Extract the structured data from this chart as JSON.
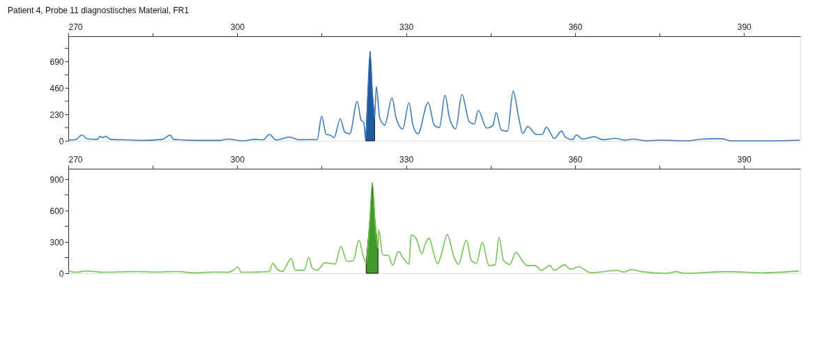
{
  "chart_data": [
    {
      "type": "line",
      "title": "Patient 4, Probe 11 diagnostisches Material, FR1",
      "xlim": [
        270,
        400
      ],
      "ylim": [
        0,
        910
      ],
      "grid": false,
      "xticks": [
        270,
        {
          "value": 285,
          "label": null
        },
        300,
        {
          "value": 315,
          "label": null
        },
        330,
        {
          "value": 345,
          "label": null
        },
        360,
        {
          "value": 375,
          "label": null
        },
        390
      ],
      "yticks": [
        0,
        {
          "value": 115,
          "label": null
        },
        230,
        {
          "value": 345,
          "label": null
        },
        460,
        {
          "value": 575,
          "label": null
        },
        690,
        {
          "value": 805,
          "label": null
        }
      ],
      "series": [
        {
          "type": "area",
          "color": "#1f5aa0",
          "x": [
            322.8,
            323.2,
            323.6,
            324.0,
            324.4
          ],
          "values": [
            7,
            420,
            777,
            420,
            202
          ]
        },
        {
          "color": "#3a7abf",
          "x": [
            270,
            271.3,
            272.4,
            273.4,
            275.2,
            275.6,
            276.1,
            276.6,
            277.5,
            279.8,
            283.5,
            286.7,
            288.1,
            288.7,
            292.6,
            296.8,
            298.4,
            300.9,
            303.2,
            304.6,
            305.7,
            306.9,
            308.3,
            309.2,
            311.0,
            312.4,
            314.2,
            315.0,
            315.8,
            316.5,
            317.2,
            318.3,
            319.1,
            320.0,
            321.3,
            322.0,
            322.5,
            322.8,
            323.2,
            323.6,
            324.0,
            324.4,
            324.7,
            325.3,
            326.2,
            327.5,
            328.2,
            329.4,
            330.5,
            331.2,
            332.1,
            333.9,
            335.0,
            335.9,
            336.9,
            337.7,
            338.8,
            339.9,
            341.2,
            342.1,
            342.8,
            344.3,
            345.4,
            346.0,
            346.9,
            348.0,
            349.0,
            350.0,
            350.7,
            351.6,
            353.1,
            354.2,
            354.9,
            356.3,
            357.6,
            358.3,
            359.6,
            360.2,
            361.4,
            363.4,
            364.9,
            367.1,
            368.9,
            370.2,
            372.8,
            375.0,
            379.9,
            382.5,
            386.0,
            387.8,
            394.0,
            399.9
          ],
          "values": [
            7,
            11,
            50,
            17,
            13,
            39,
            28,
            39,
            13,
            9,
            4,
            13,
            50,
            13,
            4,
            4,
            15,
            0,
            13,
            9,
            56,
            7,
            22,
            33,
            9,
            11,
            11,
            213,
            56,
            50,
            28,
            191,
            76,
            61,
            343,
            180,
            158,
            7,
            420,
            777,
            420,
            202,
            473,
            202,
            137,
            375,
            202,
            104,
            332,
            137,
            61,
            334,
            136,
            115,
            397,
            199,
            105,
            403,
            167,
            146,
            265,
            111,
            136,
            245,
            94,
            84,
            433,
            199,
            63,
            125,
            56,
            56,
            119,
            21,
            84,
            31,
            10,
            52,
            15,
            36,
            10,
            21,
            6,
            15,
            0,
            6,
            0,
            15,
            19,
            0,
            0,
            6
          ]
        }
      ]
    },
    {
      "type": "line",
      "xlim": [
        270,
        400
      ],
      "ylim": [
        0,
        1000
      ],
      "grid": false,
      "xticks": [
        270,
        {
          "value": 285,
          "label": null
        },
        300,
        {
          "value": 315,
          "label": null
        },
        330,
        {
          "value": 345,
          "label": null
        },
        360,
        {
          "value": 375,
          "label": null
        },
        390
      ],
      "yticks": [
        0,
        {
          "value": 150,
          "label": null
        },
        300,
        {
          "value": 450,
          "label": null
        },
        600,
        {
          "value": 750,
          "label": null
        },
        900
      ],
      "series": [
        {
          "type": "area",
          "color": "#3f9a2a",
          "x": [
            322.9,
            323.5,
            324.0,
            324.5,
            325.0
          ],
          "values": [
            101,
            480,
            864,
            480,
            240
          ]
        },
        {
          "color": "#72c452",
          "x": [
            270,
            271.4,
            273.2,
            276.4,
            281.9,
            285.6,
            289.2,
            292.4,
            295.7,
            298.4,
            299.3,
            300.1,
            300.7,
            303.0,
            305.7,
            306.3,
            307.1,
            308.0,
            309.6,
            310.3,
            311.9,
            312.7,
            313.3,
            314.2,
            315.6,
            317.4,
            318.4,
            319.5,
            320.6,
            321.6,
            322.5,
            322.9,
            323.5,
            324.0,
            324.5,
            325.0,
            325.1,
            325.9,
            326.8,
            327.6,
            328.6,
            329.6,
            330.5,
            330.9,
            331.8,
            332.8,
            333.4,
            334.1,
            334.8,
            335.6,
            336.3,
            337.3,
            338.5,
            339.3,
            340.7,
            341.6,
            342.5,
            343.5,
            344.7,
            345.8,
            346.5,
            347.3,
            348.4,
            349.5,
            350.6,
            351.5,
            352.9,
            354.0,
            355.5,
            356.3,
            358.1,
            359.2,
            360.6,
            362.8,
            367.4,
            368.7,
            369.9,
            371.8,
            376.2,
            378.0,
            379.3,
            387.3,
            393.0,
            399.8
          ],
          "values": [
            22,
            10,
            22,
            10,
            17,
            12,
            17,
            5,
            12,
            10,
            29,
            60,
            10,
            12,
            17,
            96,
            41,
            17,
            142,
            29,
            29,
            152,
            53,
            29,
            101,
            89,
            257,
            113,
            118,
            318,
            142,
            101,
            480,
            864,
            480,
            240,
            414,
            173,
            173,
            77,
            209,
            137,
            89,
            366,
            330,
            185,
            283,
            336,
            213,
            90,
            190,
            371,
            155,
            86,
            318,
            121,
            97,
            294,
            74,
            81,
            345,
            121,
            86,
            202,
            121,
            74,
            74,
            28,
            74,
            28,
            81,
            39,
            63,
            5,
            28,
            12,
            35,
            16,
            0,
            16,
            0,
            16,
            5,
            21
          ]
        }
      ]
    }
  ]
}
